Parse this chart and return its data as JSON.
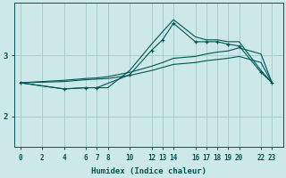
{
  "bg_color": "#cce8e8",
  "grid_color": "#aacccc",
  "line_color": "#005555",
  "xlabel": "Humidex (Indice chaleur)",
  "xticks": [
    0,
    2,
    4,
    6,
    7,
    8,
    10,
    12,
    13,
    14,
    16,
    17,
    18,
    19,
    20,
    22,
    23
  ],
  "yticks": [
    2,
    3
  ],
  "xlim": [
    -0.5,
    24
  ],
  "ylim": [
    1.5,
    3.85
  ],
  "line1_x": [
    0,
    4,
    6,
    7,
    10,
    12,
    13,
    14,
    16,
    17,
    18,
    19,
    20,
    22,
    23
  ],
  "line1_y": [
    2.55,
    2.45,
    2.47,
    2.47,
    2.68,
    3.08,
    3.25,
    3.52,
    3.22,
    3.22,
    3.22,
    3.18,
    3.15,
    2.72,
    2.55
  ],
  "line2_x": [
    0,
    4,
    6,
    7,
    8,
    10,
    12,
    13,
    14,
    16,
    17,
    18,
    19,
    20,
    22,
    23
  ],
  "line2_y": [
    2.55,
    2.45,
    2.47,
    2.47,
    2.47,
    2.75,
    3.18,
    3.38,
    3.58,
    3.3,
    3.25,
    3.25,
    3.22,
    3.22,
    2.75,
    2.55
  ],
  "line3_x": [
    0,
    2,
    4,
    6,
    7,
    8,
    10,
    12,
    13,
    14,
    16,
    17,
    18,
    19,
    20,
    22,
    23
  ],
  "line3_y": [
    2.55,
    2.57,
    2.59,
    2.62,
    2.63,
    2.65,
    2.72,
    2.82,
    2.88,
    2.95,
    2.98,
    3.02,
    3.05,
    3.07,
    3.12,
    3.02,
    2.55
  ],
  "line4_x": [
    0,
    2,
    4,
    6,
    7,
    8,
    10,
    12,
    13,
    14,
    16,
    17,
    18,
    19,
    20,
    22,
    23
  ],
  "line4_y": [
    2.55,
    2.56,
    2.57,
    2.6,
    2.61,
    2.62,
    2.67,
    2.75,
    2.8,
    2.85,
    2.88,
    2.91,
    2.93,
    2.95,
    2.98,
    2.88,
    2.55
  ]
}
